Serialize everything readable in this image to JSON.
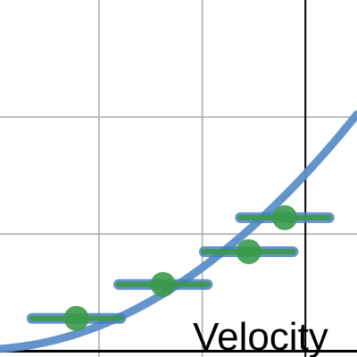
{
  "chart_data": {
    "type": "scatter",
    "xlabel": "Velocity",
    "ylabel": "",
    "xlim": [
      -2.96,
      0.5
    ],
    "ylim": [
      -0.05,
      3.0
    ],
    "x_gridlines": [
      -2.0,
      -1.0
    ],
    "y_gridlines": [
      1.0,
      2.0
    ],
    "grid": true,
    "curve": {
      "color": "#5b8fc9",
      "x_start": -2.96,
      "x_end": 0.5,
      "coefficients": {
        "a": 0.3,
        "b": 0.46,
        "c": 0.18
      }
    },
    "points": [
      {
        "x": -2.22,
        "y": 0.28,
        "xerr": 0.43
      },
      {
        "x": -1.38,
        "y": 0.57,
        "xerr": 0.43
      },
      {
        "x": -0.55,
        "y": 0.85,
        "xerr": 0.43
      },
      {
        "x": -0.2,
        "y": 1.14,
        "xerr": 0.43
      }
    ],
    "point_color": "#3a9a4a",
    "errorbar_color": "#4a7fc0"
  }
}
